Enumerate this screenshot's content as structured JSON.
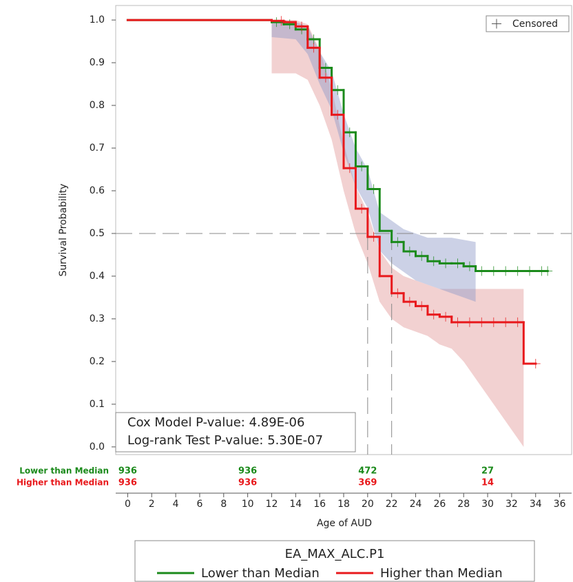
{
  "chart_data": {
    "type": "survival",
    "xlabel": "Age of AUD",
    "ylabel": "Survival Probability",
    "xlim": [
      -1,
      37
    ],
    "ylim": [
      -0.018,
      1.034
    ],
    "xticks": [
      0,
      2,
      4,
      6,
      8,
      10,
      12,
      14,
      16,
      18,
      20,
      22,
      24,
      26,
      28,
      30,
      32,
      34,
      36
    ],
    "yticks": [
      {
        "value": 0,
        "label": "0.0"
      },
      0.1,
      0.2,
      0.3,
      0.4,
      0.5,
      0.6,
      0.7,
      0.8,
      0.9,
      {
        "value": 1,
        "label": "1.0"
      }
    ],
    "reference_lines": {
      "y": 0.5,
      "x": [
        20,
        22
      ]
    },
    "censored_label": "Censored",
    "annotations": [
      "Cox Model P-value:  4.89E-06",
      "Log-rank Test P-value:  5.30E-07"
    ],
    "legend_title": "EA_MAX_ALC.P1",
    "at_risk_x": [
      0,
      10,
      20,
      30
    ],
    "series": [
      {
        "name": "Lower than Median",
        "color": "#1b8a1b",
        "band_color": "#8f98c8",
        "x": [
          0,
          12,
          13,
          14,
          15,
          16,
          17,
          18,
          19,
          20,
          21,
          22,
          23,
          24,
          25,
          26,
          27,
          28,
          29,
          35
        ],
        "values": [
          1.0,
          0.995,
          0.99,
          0.978,
          0.955,
          0.888,
          0.836,
          0.737,
          0.657,
          0.604,
          0.506,
          0.48,
          0.458,
          0.447,
          0.435,
          0.43,
          0.43,
          0.423,
          0.412,
          0.412
        ],
        "band": {
          "x": [
            12,
            14,
            15,
            16,
            17,
            18,
            19,
            20,
            21,
            22,
            23,
            24,
            25,
            26,
            27,
            28,
            29
          ],
          "lower": [
            0.96,
            0.955,
            0.92,
            0.85,
            0.79,
            0.69,
            0.61,
            0.56,
            0.46,
            0.43,
            0.41,
            0.39,
            0.38,
            0.37,
            0.36,
            0.35,
            0.34
          ],
          "upper": [
            1.0,
            0.995,
            0.985,
            0.925,
            0.88,
            0.78,
            0.7,
            0.65,
            0.55,
            0.53,
            0.51,
            0.5,
            0.49,
            0.49,
            0.49,
            0.485,
            0.48
          ]
        },
        "censored_x": [
          12.4,
          13.5,
          14.5,
          15.5,
          16.5,
          17.5,
          18.5,
          19.5,
          20.5,
          22.5,
          23.5,
          24.5,
          25.5,
          26.5,
          27.5,
          28.5,
          29.5,
          30.5,
          31.5,
          32.5,
          33.5,
          34.5,
          35
        ],
        "censored_y": [
          0.995,
          0.99,
          0.978,
          0.955,
          0.888,
          0.836,
          0.737,
          0.657,
          0.604,
          0.48,
          0.458,
          0.447,
          0.435,
          0.43,
          0.43,
          0.423,
          0.412,
          0.412,
          0.412,
          0.412,
          0.412,
          0.412,
          0.412
        ],
        "at_risk": [
          936,
          936,
          472,
          27
        ]
      },
      {
        "name": "Higher than Median",
        "color": "#e8191c",
        "band_color": "#e39a9a",
        "x": [
          0,
          12,
          13,
          14,
          15,
          16,
          17,
          18,
          19,
          20,
          21,
          22,
          23,
          24,
          25,
          26,
          27,
          33,
          34
        ],
        "values": [
          1.0,
          0.998,
          0.995,
          0.985,
          0.935,
          0.865,
          0.778,
          0.653,
          0.558,
          0.492,
          0.4,
          0.36,
          0.34,
          0.33,
          0.31,
          0.305,
          0.292,
          0.195,
          0.195
        ],
        "band": {
          "x": [
            12,
            14,
            15,
            16,
            17,
            18,
            19,
            20,
            21,
            22,
            23,
            24,
            25,
            26,
            27,
            28,
            33
          ],
          "lower": [
            0.875,
            0.875,
            0.86,
            0.8,
            0.72,
            0.6,
            0.5,
            0.43,
            0.34,
            0.3,
            0.28,
            0.27,
            0.26,
            0.24,
            0.23,
            0.2,
            0.0
          ],
          "upper": [
            1.0,
            1.0,
            0.99,
            0.93,
            0.84,
            0.71,
            0.61,
            0.55,
            0.46,
            0.42,
            0.4,
            0.39,
            0.38,
            0.37,
            0.37,
            0.37,
            0.37
          ]
        },
        "censored_x": [
          12.8,
          14.5,
          15.5,
          16.5,
          17.5,
          18.5,
          19.5,
          20.5,
          22.5,
          23.5,
          24.5,
          25.5,
          26.5,
          27.5,
          28.5,
          29.5,
          30.5,
          31.5,
          32.5,
          34
        ],
        "censored_y": [
          0.998,
          0.985,
          0.935,
          0.865,
          0.778,
          0.653,
          0.558,
          0.492,
          0.36,
          0.34,
          0.33,
          0.31,
          0.305,
          0.292,
          0.292,
          0.292,
          0.292,
          0.292,
          0.292,
          0.195
        ],
        "at_risk": [
          936,
          936,
          369,
          14
        ]
      }
    ]
  }
}
